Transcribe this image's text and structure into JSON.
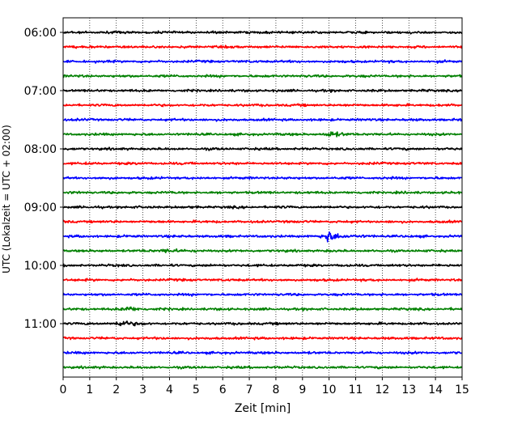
{
  "chart_data": {
    "type": "line",
    "title": "",
    "xlabel": "Zeit  [min]",
    "ylabel": "UTC (Lokalzeit = UTC + 02:00)",
    "xlim": [
      0,
      15
    ],
    "xticks": [
      "0",
      "1",
      "2",
      "3",
      "4",
      "5",
      "6",
      "7",
      "8",
      "9",
      "10",
      "11",
      "12",
      "13",
      "14",
      "15"
    ],
    "ytick_labels": [
      "06:00",
      "07:00",
      "08:00",
      "09:00",
      "10:00",
      "11:00"
    ],
    "grid": "vertical dotted",
    "traces": [
      {
        "start": "06:00",
        "color": "#000000",
        "events": []
      },
      {
        "start": "06:15",
        "color": "#ff0000",
        "events": []
      },
      {
        "start": "06:30",
        "color": "#0000ff",
        "events": []
      },
      {
        "start": "06:45",
        "color": "#008000",
        "events": []
      },
      {
        "start": "07:00",
        "color": "#000000",
        "events": []
      },
      {
        "start": "07:15",
        "color": "#ff0000",
        "events": []
      },
      {
        "start": "07:30",
        "color": "#0000ff",
        "events": []
      },
      {
        "start": "07:45",
        "color": "#008000",
        "events": [
          {
            "t": 10.0,
            "amp": 1.4
          }
        ]
      },
      {
        "start": "08:00",
        "color": "#000000",
        "events": []
      },
      {
        "start": "08:15",
        "color": "#ff0000",
        "events": []
      },
      {
        "start": "08:30",
        "color": "#0000ff",
        "events": []
      },
      {
        "start": "08:45",
        "color": "#008000",
        "events": []
      },
      {
        "start": "09:00",
        "color": "#000000",
        "events": []
      },
      {
        "start": "09:15",
        "color": "#ff0000",
        "events": []
      },
      {
        "start": "09:30",
        "color": "#0000ff",
        "events": [
          {
            "t": 9.9,
            "amp": 3.2
          }
        ]
      },
      {
        "start": "09:45",
        "color": "#008000",
        "events": [
          {
            "t": 3.8,
            "amp": 1.1
          }
        ]
      },
      {
        "start": "10:00",
        "color": "#000000",
        "events": []
      },
      {
        "start": "10:15",
        "color": "#ff0000",
        "events": []
      },
      {
        "start": "10:30",
        "color": "#0000ff",
        "events": []
      },
      {
        "start": "10:45",
        "color": "#008000",
        "events": [
          {
            "t": 2.4,
            "amp": 1.2
          }
        ]
      },
      {
        "start": "11:00",
        "color": "#000000",
        "events": [
          {
            "t": 2.1,
            "amp": 1.8
          }
        ]
      },
      {
        "start": "11:15",
        "color": "#ff0000",
        "events": []
      },
      {
        "start": "11:30",
        "color": "#0000ff",
        "events": []
      },
      {
        "start": "11:45",
        "color": "#008000",
        "events": []
      }
    ]
  }
}
